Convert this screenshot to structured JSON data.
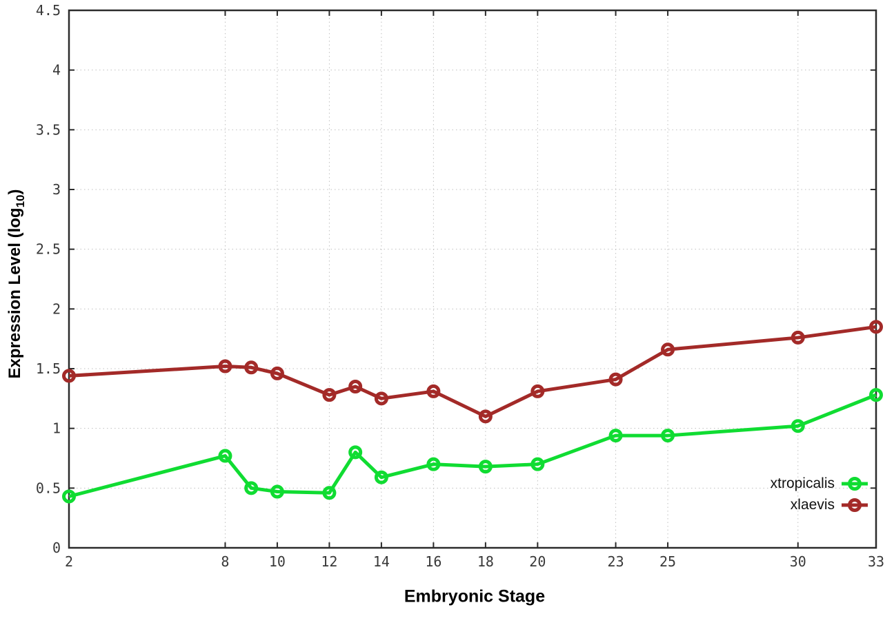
{
  "figure": {
    "background": "#ffffff",
    "y_axis_title": {
      "pre": "Expression Level (log",
      "sub": "10",
      "post": ")"
    }
  },
  "chart_data": {
    "type": "line",
    "title": "",
    "xlabel": "Embryonic Stage",
    "ylabel": "Expression Level (log10)",
    "xlim": [
      2,
      33
    ],
    "ylim": [
      0,
      4.5
    ],
    "grid": true,
    "grid_style": "dotted",
    "legend_position": "inside-bottom-right",
    "marker": "open-circle",
    "x": [
      2,
      8,
      9,
      10,
      12,
      13,
      14,
      16,
      18,
      20,
      23,
      25,
      30,
      33
    ],
    "series": [
      {
        "name": "xtropicalis",
        "color": "#10dc32",
        "values": [
          0.43,
          0.77,
          0.5,
          0.47,
          0.46,
          0.8,
          0.59,
          0.7,
          0.68,
          0.7,
          0.94,
          0.94,
          1.02,
          1.28
        ]
      },
      {
        "name": "xlaevis",
        "color": "#a32a28",
        "values": [
          1.44,
          1.52,
          1.51,
          1.46,
          1.28,
          1.35,
          1.25,
          1.31,
          1.1,
          1.31,
          1.41,
          1.66,
          1.76,
          1.85
        ]
      }
    ],
    "x_ticks": [
      2,
      8,
      10,
      12,
      14,
      16,
      18,
      20,
      23,
      25,
      30,
      33
    ],
    "x_tick_labels": [
      "2",
      "8",
      "10",
      "12",
      "14",
      "16",
      "18",
      "20",
      "23",
      "25",
      "30",
      "33"
    ],
    "y_ticks": [
      0,
      0.5,
      1,
      1.5,
      2,
      2.5,
      3,
      3.5,
      4,
      4.5
    ],
    "y_tick_labels": [
      "0",
      "0.5",
      "1",
      "1.5",
      "2",
      "2.5",
      "3",
      "3.5",
      "4",
      "4.5"
    ],
    "colors": {
      "border": "#2b2b2b",
      "grid": "#bfbfbf",
      "tick_text": "#383838",
      "title_text": "#000000"
    }
  }
}
